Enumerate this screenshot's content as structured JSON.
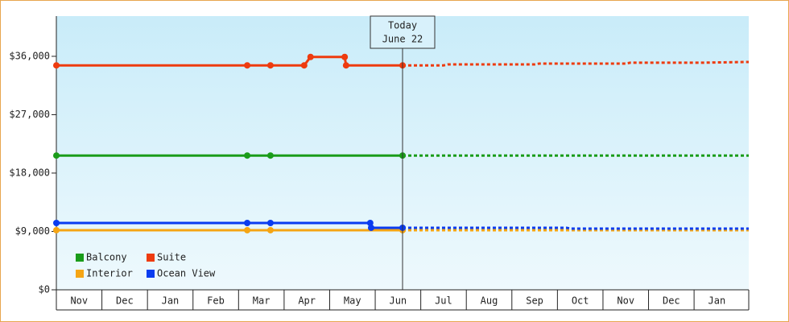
{
  "chart_data": {
    "type": "line",
    "categories": [
      "Nov",
      "Dec",
      "Jan",
      "Feb",
      "Mar",
      "Apr",
      "May",
      "Jun",
      "Jul",
      "Aug",
      "Sep",
      "Oct",
      "Nov",
      "Dec",
      "Jan"
    ],
    "xlim": [
      0,
      15.2
    ],
    "ylim": [
      0,
      42200
    ],
    "yticks": [
      {
        "value": 0,
        "label": "$0"
      },
      {
        "value": 9000,
        "label": "$9,000"
      },
      {
        "value": 18000,
        "label": "$18,000"
      },
      {
        "value": 27000,
        "label": "$27,000"
      },
      {
        "value": 36000,
        "label": "$36,000"
      }
    ],
    "today": {
      "x": 7.6,
      "label": [
        "Today",
        "June 22"
      ]
    },
    "legend": "bottom-left",
    "series": [
      {
        "name": "Balcony",
        "color": "#1a9c1a",
        "x": [
          0,
          4.19,
          4.7,
          7.6
        ],
        "values": [
          20700,
          20700,
          20700,
          20700
        ],
        "forecast_x": [
          7.6,
          15.2
        ],
        "forecast_values": [
          20700,
          20700
        ]
      },
      {
        "name": "Suite",
        "color": "#ee3b0f",
        "x": [
          0,
          4.19,
          4.7,
          5.44,
          5.58,
          6.33,
          6.36,
          7.6
        ],
        "values": [
          34600,
          34600,
          34600,
          34600,
          35900,
          35900,
          34600,
          34600
        ],
        "forecast_x": [
          7.6,
          8.5,
          8.6,
          10.5,
          10.6,
          12.5,
          12.6,
          14.1,
          15.2
        ],
        "forecast_values": [
          34600,
          34600,
          34760,
          34760,
          34880,
          34880,
          35010,
          35010,
          35130
        ]
      },
      {
        "name": "Interior",
        "color": "#f5a514",
        "x": [
          0,
          4.19,
          4.7,
          7.6
        ],
        "values": [
          9190,
          9190,
          9190,
          9190
        ],
        "forecast_x": [
          7.6,
          15.2
        ],
        "forecast_values": [
          9190,
          9190
        ]
      },
      {
        "name": "Ocean View",
        "color": "#0a3cf0",
        "x": [
          0,
          4.19,
          4.7,
          6.89,
          6.91,
          7.6
        ],
        "values": [
          10300,
          10300,
          10300,
          10300,
          9560,
          9560
        ],
        "forecast_x": [
          7.6,
          11.2,
          11.3,
          15.2
        ],
        "forecast_values": [
          9560,
          9560,
          9430,
          9430
        ]
      }
    ]
  }
}
